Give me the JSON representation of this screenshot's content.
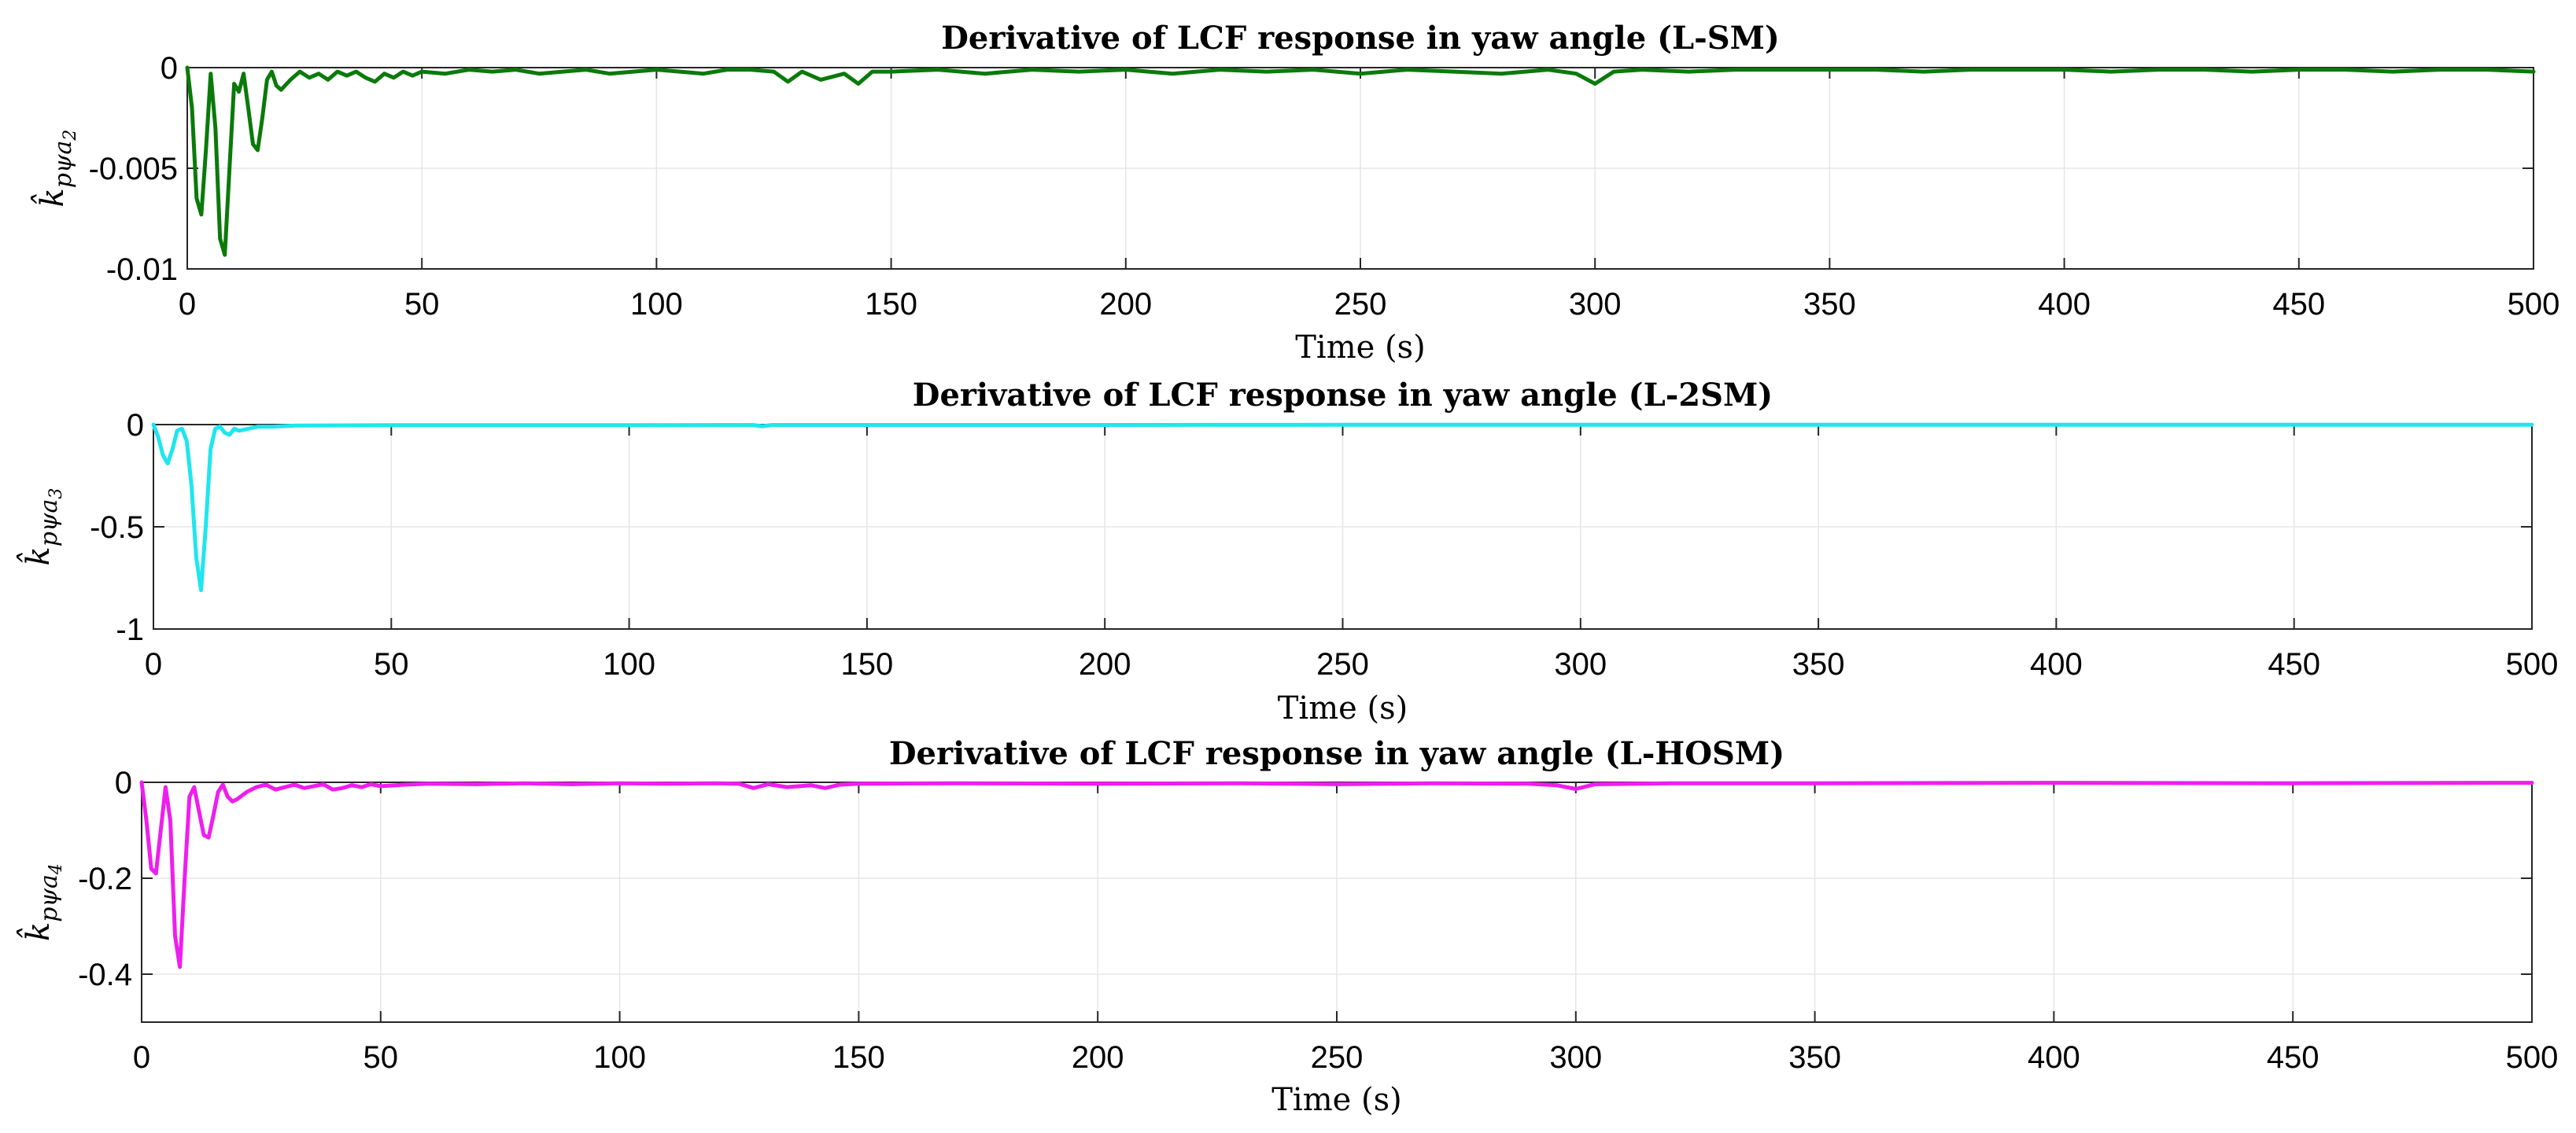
{
  "chart_data": [
    {
      "type": "line",
      "title": "Derivative of LCF response in yaw angle (L-SM)",
      "xlabel": "Time (s)",
      "ylabel": "k̂",
      "ylabel_sub": "pψa",
      "ylabel_idx": "2",
      "xlim": [
        0,
        500
      ],
      "ylim": [
        -0.01,
        0
      ],
      "xticks": [
        0,
        50,
        100,
        150,
        200,
        250,
        300,
        350,
        400,
        450,
        500
      ],
      "xtick_labels": [
        "0",
        "50",
        "100",
        "150",
        "200",
        "250",
        "300",
        "350",
        "400",
        "450",
        "500"
      ],
      "yticks": [
        0,
        -0.005,
        -0.01
      ],
      "ytick_labels": [
        "0",
        "-0.005",
        "-0.01"
      ],
      "grid": true,
      "color": "#0a7a0a",
      "series": [
        {
          "name": "L-SM",
          "x": [
            0,
            1,
            2,
            3,
            4,
            5,
            6,
            7,
            8,
            9,
            10,
            11,
            12,
            13,
            14,
            15,
            16,
            17,
            18,
            19,
            20,
            22,
            24,
            26,
            28,
            30,
            32,
            34,
            36,
            38,
            40,
            42,
            44,
            46,
            48,
            50,
            55,
            60,
            65,
            70,
            75,
            80,
            85,
            90,
            95,
            100,
            105,
            110,
            115,
            120,
            125,
            128,
            131,
            135,
            140,
            143,
            146,
            150,
            160,
            170,
            180,
            190,
            200,
            210,
            220,
            230,
            240,
            250,
            260,
            270,
            280,
            290,
            296,
            300,
            304,
            310,
            320,
            330,
            340,
            350,
            360,
            370,
            380,
            390,
            400,
            410,
            420,
            430,
            440,
            450,
            460,
            470,
            480,
            490,
            500
          ],
          "y": [
            0,
            -0.002,
            -0.0065,
            -0.0073,
            -0.004,
            -0.0003,
            -0.003,
            -0.0085,
            -0.0093,
            -0.005,
            -0.0008,
            -0.0012,
            -0.0003,
            -0.002,
            -0.0038,
            -0.0041,
            -0.0025,
            -0.0006,
            -0.0002,
            -0.0009,
            -0.0011,
            -0.0006,
            -0.0002,
            -0.0005,
            -0.0003,
            -0.0006,
            -0.0002,
            -0.0004,
            -0.0002,
            -0.0005,
            -0.0007,
            -0.0003,
            -0.0005,
            -0.0002,
            -0.0004,
            -0.0002,
            -0.0003,
            -0.0001,
            -0.0002,
            -0.0001,
            -0.0003,
            -0.0002,
            -0.0001,
            -0.0003,
            -0.0002,
            -0.0001,
            -0.0002,
            -0.0003,
            -0.0001,
            -0.0001,
            -0.0002,
            -0.0007,
            -0.0002,
            -0.0006,
            -0.0003,
            -0.0008,
            -0.0002,
            -0.0002,
            -0.0001,
            -0.0003,
            -0.0001,
            -0.0002,
            -0.0001,
            -0.0003,
            -0.0001,
            -0.0002,
            -0.0001,
            -0.0003,
            -0.0001,
            -0.0002,
            -0.0003,
            -0.0001,
            -0.0003,
            -0.0008,
            -0.0002,
            -0.0001,
            -0.0002,
            -0.0001,
            -0.0001,
            -0.0001,
            -0.0001,
            -0.0002,
            -0.0001,
            -0.0001,
            -0.0001,
            -0.0002,
            -0.0001,
            -0.0001,
            -0.0002,
            -0.0001,
            -0.0001,
            -0.0002,
            -0.0001,
            -0.0001,
            -0.0002
          ]
        }
      ]
    },
    {
      "type": "line",
      "title": "Derivative of LCF response in yaw angle (L-2SM)",
      "xlabel": "Time (s)",
      "ylabel": "k̂",
      "ylabel_sub": "pψa",
      "ylabel_idx": "3",
      "xlim": [
        0,
        500
      ],
      "ylim": [
        -1,
        0
      ],
      "xticks": [
        0,
        50,
        100,
        150,
        200,
        250,
        300,
        350,
        400,
        450,
        500
      ],
      "xtick_labels": [
        "0",
        "50",
        "100",
        "150",
        "200",
        "250",
        "300",
        "350",
        "400",
        "450",
        "500"
      ],
      "yticks": [
        0,
        -0.5,
        -1
      ],
      "ytick_labels": [
        "0",
        "-0.5",
        "-1"
      ],
      "grid": true,
      "color": "#1ee6ee",
      "series": [
        {
          "name": "L-2SM",
          "x": [
            0,
            1,
            2,
            3,
            4,
            5,
            6,
            7,
            8,
            9,
            10,
            11,
            12,
            13,
            14,
            15,
            16,
            17,
            18,
            20,
            22,
            25,
            30,
            40,
            50,
            100,
            126,
            128,
            130,
            150,
            200,
            250,
            300,
            350,
            400,
            450,
            500
          ],
          "y": [
            0,
            -0.06,
            -0.15,
            -0.19,
            -0.12,
            -0.03,
            -0.02,
            -0.08,
            -0.3,
            -0.65,
            -0.81,
            -0.5,
            -0.12,
            -0.02,
            -0.01,
            -0.04,
            -0.05,
            -0.02,
            -0.03,
            -0.02,
            -0.01,
            -0.01,
            -0.005,
            -0.004,
            -0.003,
            -0.003,
            -0.002,
            -0.008,
            -0.002,
            -0.002,
            -0.002,
            -0.001,
            -0.001,
            -0.001,
            -0.001,
            -0.001,
            -0.001
          ]
        }
      ]
    },
    {
      "type": "line",
      "title": "Derivative of LCF response in yaw angle (L-HOSM)",
      "xlabel": "Time (s)",
      "ylabel": "k̂",
      "ylabel_sub": "pψa",
      "ylabel_idx": "4",
      "xlim": [
        0,
        500
      ],
      "ylim": [
        -0.5,
        0
      ],
      "xticks": [
        0,
        50,
        100,
        150,
        200,
        250,
        300,
        350,
        400,
        450,
        500
      ],
      "xtick_labels": [
        "0",
        "50",
        "100",
        "150",
        "200",
        "250",
        "300",
        "350",
        "400",
        "450",
        "500"
      ],
      "yticks": [
        0,
        -0.2,
        -0.4
      ],
      "ytick_labels": [
        "0",
        "-0.2",
        "-0.4"
      ],
      "grid": true,
      "color": "#ee1eee",
      "series": [
        {
          "name": "L-HOSM",
          "x": [
            0,
            1,
            2,
            3,
            4,
            5,
            6,
            7,
            8,
            9,
            10,
            11,
            12,
            13,
            14,
            15,
            16,
            17,
            18,
            19,
            20,
            22,
            24,
            26,
            28,
            30,
            32,
            34,
            36,
            38,
            40,
            42,
            44,
            46,
            48,
            50,
            55,
            60,
            70,
            80,
            90,
            100,
            110,
            120,
            125,
            128,
            131,
            135,
            140,
            143,
            146,
            150,
            170,
            200,
            230,
            250,
            270,
            290,
            296,
            300,
            304,
            320,
            350,
            400,
            450,
            500
          ],
          "y": [
            0,
            -0.08,
            -0.18,
            -0.19,
            -0.1,
            -0.01,
            -0.08,
            -0.32,
            -0.385,
            -0.2,
            -0.03,
            -0.01,
            -0.06,
            -0.11,
            -0.115,
            -0.07,
            -0.02,
            -0.005,
            -0.03,
            -0.04,
            -0.035,
            -0.02,
            -0.01,
            -0.005,
            -0.015,
            -0.01,
            -0.005,
            -0.012,
            -0.008,
            -0.004,
            -0.015,
            -0.012,
            -0.006,
            -0.01,
            -0.004,
            -0.008,
            -0.005,
            -0.003,
            -0.004,
            -0.002,
            -0.004,
            -0.002,
            -0.003,
            -0.002,
            -0.003,
            -0.012,
            -0.004,
            -0.01,
            -0.006,
            -0.012,
            -0.005,
            -0.003,
            -0.002,
            -0.003,
            -0.002,
            -0.004,
            -0.002,
            -0.003,
            -0.006,
            -0.014,
            -0.004,
            -0.002,
            -0.002,
            -0.001,
            -0.002,
            -0.001
          ]
        }
      ]
    }
  ]
}
